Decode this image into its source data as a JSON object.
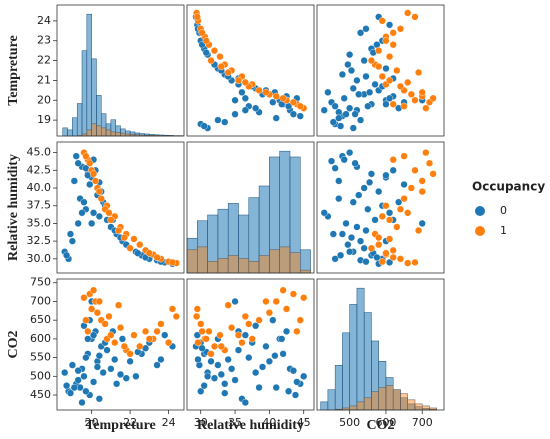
{
  "chart_data": {
    "type": "pairplot",
    "variables": [
      {
        "name": "Tempreture",
        "lim": [
          18.2,
          24.8
        ],
        "xticks": [
          20,
          22,
          24
        ],
        "yticks": [
          19,
          20,
          21,
          22,
          23,
          24
        ],
        "bins": [
          18.5,
          18.75,
          19,
          19.25,
          19.5,
          19.75,
          20,
          20.25,
          20.5,
          20.75,
          21,
          21.25,
          21.5,
          21.75,
          22,
          22.25,
          22.5,
          22.75,
          23,
          23.25,
          23.5,
          23.75,
          24,
          24.25,
          24.5,
          24.75
        ]
      },
      {
        "name": "Relative humidity",
        "lim": [
          28,
          46.5
        ],
        "xticks": [
          30,
          35,
          40,
          45
        ],
        "yticks": [
          {
            "value": 30,
            "label": "30.0"
          },
          32.5,
          {
            "value": 35,
            "label": "35.0"
          },
          37.5,
          {
            "value": 40,
            "label": "40.0"
          },
          42.5,
          {
            "value": 45,
            "label": "45.0"
          }
        ],
        "bins": [
          28,
          29.5,
          31,
          32.5,
          34,
          35.5,
          37,
          38.5,
          40,
          41.5,
          43,
          44.5,
          46
        ]
      },
      {
        "name": "CO2",
        "lim": [
          410,
          760
        ],
        "xticks": [
          500,
          600,
          700
        ],
        "yticks": [
          450,
          500,
          550,
          600,
          650,
          700,
          750
        ],
        "bins": [
          420,
          440,
          460,
          480,
          500,
          520,
          540,
          560,
          580,
          600,
          620,
          640,
          660,
          680,
          700,
          720,
          740
        ]
      }
    ],
    "legend": {
      "title": "Occupancy",
      "position": "right"
    },
    "series": [
      {
        "name": "0",
        "color": "#1f77b4",
        "values": [
          [
            19.2,
            19.5,
            19.8,
            20.0,
            20.3,
            19.6,
            19.9,
            20.2,
            19.4,
            20.5,
            18.6,
            18.8,
            19.0,
            19.3,
            19.7,
            20.1,
            20.4,
            20.8,
            21.0,
            21.3,
            21.6,
            22.0,
            22.3,
            22.6,
            23.0,
            23.4,
            23.8,
            24.2,
            19.1,
            19.9,
            20.6,
            21.2,
            21.8,
            22.4,
            19.5,
            20.0,
            19.8,
            20.3,
            18.9,
            19.6,
            20.7,
            21.5,
            22.8,
            23.6,
            19.3,
            20.1,
            19.7,
            20.4,
            21.1,
            18.7
          ],
          [
            44.5,
            43.0,
            42.0,
            41.5,
            40.0,
            45.0,
            43.8,
            42.5,
            38.5,
            39.5,
            31.0,
            30.0,
            32.5,
            35.0,
            37.0,
            36.5,
            36.0,
            35.5,
            34.5,
            33.5,
            32.5,
            31.5,
            31.0,
            30.5,
            30.0,
            29.8,
            29.5,
            29.3,
            41.0,
            40.5,
            38.0,
            34.0,
            32.0,
            30.8,
            36.5,
            35.0,
            41.8,
            39.0,
            33.5,
            38.0,
            37.5,
            33.0,
            30.2,
            29.6,
            43.5,
            44.0,
            42.8,
            40.8,
            35.5,
            30.5
          ],
          [
            480,
            520,
            560,
            600,
            540,
            500,
            450,
            620,
            470,
            580,
            510,
            460,
            530,
            490,
            550,
            610,
            440,
            570,
            520,
            480,
            600,
            540,
            500,
            560,
            590,
            530,
            610,
            580,
            470,
            650,
            510,
            545,
            495,
            565,
            430,
            700,
            600,
            525,
            455,
            635,
            590,
            505,
            575,
            545,
            515,
            485,
            460,
            555,
            620,
            475
          ]
        ],
        "counts": [
          [
            40,
            30,
            90,
            160,
            420,
            600,
            380,
            200,
            110,
            60,
            80,
            50,
            35,
            25,
            20,
            15,
            12,
            10,
            8,
            6,
            5,
            4,
            3,
            2,
            2
          ],
          [
            60,
            90,
            100,
            110,
            120,
            100,
            130,
            150,
            200,
            210,
            200,
            40
          ],
          [
            20,
            50,
            110,
            190,
            260,
            300,
            240,
            170,
            120,
            80,
            50,
            30,
            15,
            8,
            4,
            2
          ]
        ]
      },
      {
        "name": "1",
        "color": "#ff7f0e",
        "values": [
          [
            19.8,
            20.0,
            20.2,
            20.5,
            20.8,
            21.2,
            21.5,
            21.8,
            22.2,
            22.5,
            22.8,
            23.2,
            23.6,
            24.0,
            24.4,
            19.9,
            20.3,
            20.7,
            21.0,
            21.4,
            19.6,
            20.1,
            22.0,
            23.0,
            24.2,
            20.4,
            21.7,
            23.4,
            19.7,
            20.9
          ],
          [
            44.0,
            42.5,
            41.0,
            38.5,
            37.5,
            36.0,
            34.5,
            33.5,
            32.8,
            32.0,
            31.2,
            30.6,
            30.0,
            29.6,
            29.4,
            43.5,
            40.0,
            37.0,
            35.5,
            34.0,
            45.0,
            42.0,
            31.5,
            30.8,
            29.5,
            39.5,
            33.0,
            30.2,
            44.5,
            36.5
          ],
          [
            620,
            680,
            700,
            650,
            600,
            590,
            630,
            570,
            610,
            580,
            620,
            600,
            640,
            590,
            660,
            720,
            670,
            640,
            610,
            690,
            710,
            730,
            560,
            600,
            680,
            700,
            580,
            620,
            650,
            660
          ]
        ],
        "counts": [
          [
            0,
            0,
            0,
            2,
            10,
            30,
            60,
            50,
            40,
            30,
            20,
            18,
            14,
            10,
            8,
            6,
            5,
            4,
            3,
            3,
            2,
            2,
            2,
            1,
            1
          ],
          [
            40,
            45,
            20,
            25,
            30,
            25,
            20,
            30,
            40,
            45,
            35,
            5
          ],
          [
            0,
            0,
            2,
            5,
            10,
            20,
            30,
            45,
            55,
            60,
            50,
            40,
            25,
            15,
            10,
            5
          ]
        ]
      }
    ]
  }
}
